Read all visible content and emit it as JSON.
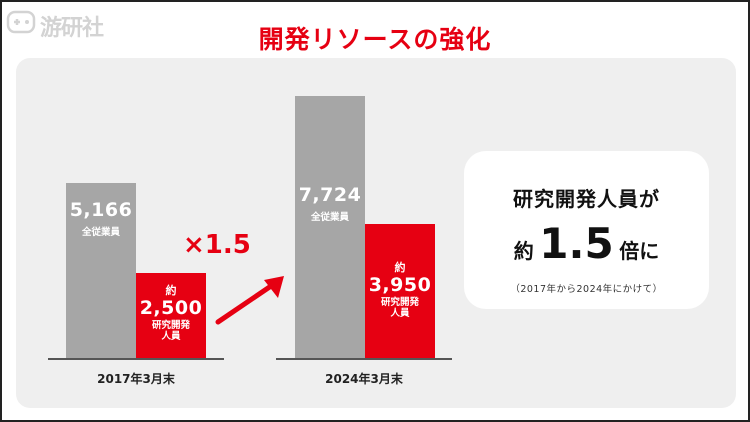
{
  "header": {
    "logo_text": "游研社",
    "title": "開発リソースの強化"
  },
  "chart_data": {
    "type": "bar",
    "categories": [
      "2017年3月末",
      "2024年3月末"
    ],
    "series": [
      {
        "name": "全従業員",
        "values": [
          5166,
          7724
        ],
        "labels": [
          "5,166",
          "7,724"
        ]
      },
      {
        "name": "研究開発人員",
        "values": [
          2500,
          3950
        ],
        "labels": [
          "2,500",
          "3,950"
        ],
        "prefix": "約"
      }
    ],
    "multiplier": "×1.5",
    "colors": {
      "employees": "#a6a6a6",
      "rnd": "#e60012"
    }
  },
  "bar_texts": {
    "employees_sub": "全従業員",
    "rnd_prefix": "約",
    "rnd_sub_1": "研究開発",
    "rnd_sub_2": "人員"
  },
  "callout": {
    "line1": "研究開発人員が",
    "line2_prefix": "約",
    "line2_value": "1.5",
    "line2_suffix": "倍に",
    "note": "（2017年から2024年にかけて）"
  },
  "colors": {
    "accent": "#e60012",
    "panel": "#efefef"
  }
}
